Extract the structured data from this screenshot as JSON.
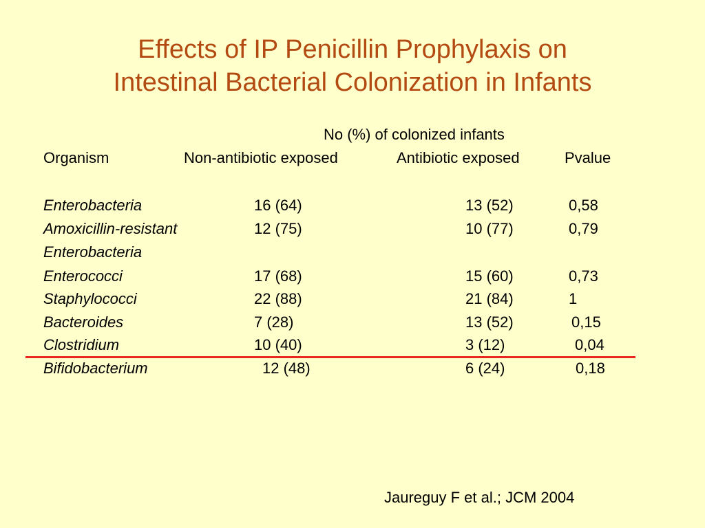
{
  "slide": {
    "title_line1": "Effects of IP Penicillin Prophylaxis on",
    "title_line2": "Intestinal Bacterial Colonization in Infants",
    "title_color": "#b34a12",
    "background_color": "#ffffcc",
    "accent_line_color": "#e8281e"
  },
  "table": {
    "group_header": "No (%) of colonized infants",
    "headers": {
      "organism": "Organism",
      "non_exposed": "Non-antibiotic exposed",
      "exposed": "Antibiotic exposed",
      "pvalue": "Pvalue"
    },
    "rows": [
      {
        "organism": "Enterobacteria",
        "non_exposed": "16 (64)",
        "exposed": "13 (52)",
        "pvalue": "0,58"
      },
      {
        "organism": "Amoxicillin-resistant",
        "non_exposed": "12 (75)",
        "exposed": "10 (77)",
        "pvalue": "0,79"
      },
      {
        "organism": "Enterobacteria",
        "non_exposed": "",
        "exposed": "",
        "pvalue": ""
      },
      {
        "organism": "Enterococci",
        "non_exposed": "17 (68)",
        "exposed": "15 (60)",
        "pvalue": "0,73"
      },
      {
        "organism": "Staphylococci",
        "non_exposed": "22 (88)",
        "exposed": "21 (84)",
        "pvalue": "1"
      },
      {
        "organism": "Bacteroides",
        "non_exposed": "7 (28)",
        "exposed": "13 (52)",
        "pvalue": "0,15"
      },
      {
        "organism": "Clostridium",
        "non_exposed": "10 (40)",
        "exposed": "3 (12)",
        "pvalue": "0,04"
      },
      {
        "organism": "Bifidobacterium",
        "non_exposed": "12 (48)",
        "exposed": "6 (24)",
        "pvalue": "0,18"
      }
    ]
  },
  "citation": "Jaureguy F et al.; JCM 2004"
}
